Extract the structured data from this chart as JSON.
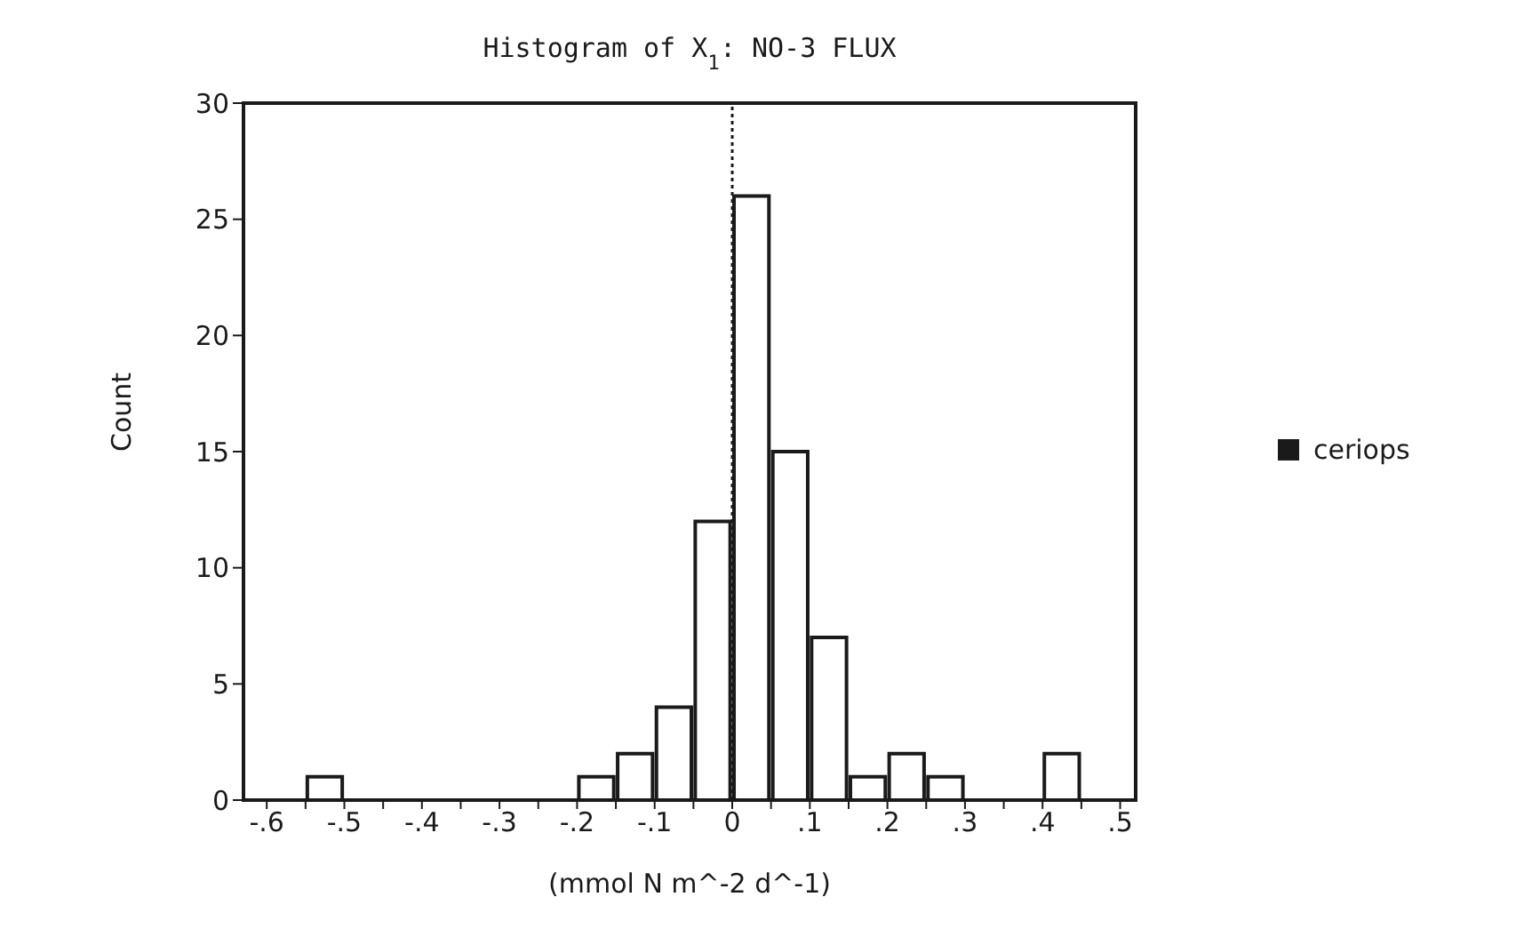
{
  "chart_data": {
    "type": "histogram",
    "title": "Histogram of X$_{1}$: NO-3  FLUX",
    "xlabel": "(mmol N m^-2 d^-1)",
    "ylabel": "Count",
    "bins": [
      -0.55,
      -0.5,
      -0.45,
      -0.4,
      -0.35,
      -0.3,
      -0.25,
      -0.2,
      -0.15,
      -0.1,
      -0.05,
      0,
      0.05,
      0.1,
      0.15,
      0.2,
      0.25,
      0.3,
      0.35,
      0.4,
      0.45
    ],
    "series": [
      {
        "name": "ceriops",
        "color": "#1a1a1a",
        "values": [
          1,
          0,
          0,
          0,
          0,
          0,
          0,
          1,
          2,
          4,
          12,
          26,
          15,
          7,
          1,
          2,
          1,
          0,
          0,
          2
        ]
      }
    ],
    "xlim": [
      -0.63,
      0.52
    ],
    "xticks": [
      {
        "value": -0.6,
        "label": "-.6"
      },
      {
        "value": -0.55,
        "label": null
      },
      {
        "value": -0.5,
        "label": "-.5"
      },
      {
        "value": -0.45,
        "label": null
      },
      {
        "value": -0.4,
        "label": "-.4"
      },
      {
        "value": -0.35,
        "label": null
      },
      {
        "value": -0.3,
        "label": "-.3"
      },
      {
        "value": -0.25,
        "label": null
      },
      {
        "value": -0.2,
        "label": "-.2"
      },
      {
        "value": -0.15,
        "label": null
      },
      {
        "value": -0.1,
        "label": "-.1"
      },
      {
        "value": -0.05,
        "label": null
      },
      0,
      {
        "value": 0.05,
        "label": null
      },
      {
        "value": 0.1,
        "label": ".1"
      },
      {
        "value": 0.15,
        "label": null
      },
      {
        "value": 0.2,
        "label": ".2"
      },
      {
        "value": 0.25,
        "label": null
      },
      {
        "value": 0.3,
        "label": ".3"
      },
      {
        "value": 0.35,
        "label": null
      },
      {
        "value": 0.4,
        "label": ".4"
      },
      {
        "value": 0.45,
        "label": null
      },
      {
        "value": 0.5,
        "label": ".5"
      }
    ],
    "ylim": [
      0,
      30
    ],
    "yticks": [
      0,
      5,
      10,
      15,
      20,
      25,
      30
    ],
    "ref_lines": [
      {
        "axis": "x",
        "value": 0,
        "line_style": "dotted",
        "color": "#1a1a1a"
      }
    ],
    "grid": false,
    "legend": "right"
  }
}
